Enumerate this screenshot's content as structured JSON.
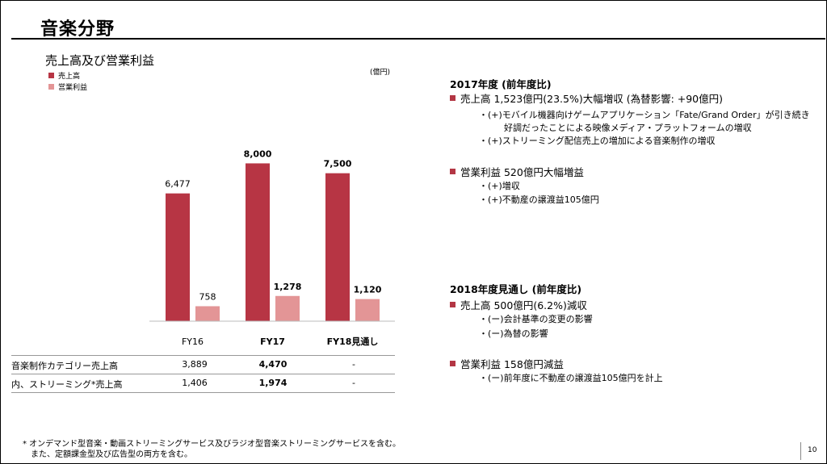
{
  "page_title": "音楽分野",
  "colors": {
    "revenue": "#b73544",
    "operating_income": "#e39596",
    "bullet": "#b33644"
  },
  "chart_data": {
    "type": "bar",
    "title": "売上高及び営業利益",
    "unit": "(億円)",
    "categories": [
      "FY16",
      "FY17",
      "FY18見通し"
    ],
    "category_bold": [
      false,
      true,
      true
    ],
    "series": [
      {
        "name": "売上高",
        "values": [
          6477,
          8000,
          7500
        ],
        "labels": [
          "6,477",
          "8,000",
          "7,500"
        ],
        "bold": [
          false,
          true,
          true
        ]
      },
      {
        "name": "営業利益",
        "values": [
          758,
          1278,
          1120
        ],
        "labels": [
          "758",
          "1,278",
          "1,120"
        ],
        "bold": [
          false,
          true,
          true
        ]
      }
    ],
    "ylim": [
      0,
      9000
    ],
    "grid": false,
    "legend": "top-left"
  },
  "table": {
    "rows": [
      {
        "label": "音楽制作カテゴリー売上高",
        "values": [
          "3,889",
          "4,470",
          "-"
        ]
      },
      {
        "label": "内、ストリーミング*売上高",
        "values": [
          "1,406",
          "1,974",
          "-"
        ]
      }
    ]
  },
  "fy17": {
    "title": "2017年度 (前年度比)",
    "sales_heading": "売上高 1,523億円(23.5%)大幅増収 (為替影響: +90億円)",
    "sales_items": [
      "・(+)モバイル機器向けゲームアプリケーション「Fate/Grand Order」が引き続き",
      "好調だったことによる映像メディア・プラットフォームの増収",
      "・(+)ストリーミング配信売上の増加による音楽制作の増収"
    ],
    "op_heading": "営業利益 520億円大幅増益",
    "op_items": [
      "・(+)増収",
      "・(+)不動産の譲渡益105億円"
    ]
  },
  "fy18": {
    "title": "2018年度見通し (前年度比)",
    "sales_heading": "売上高 500億円(6.2%)減収",
    "sales_items": [
      "・(ー)会計基準の変更の影響",
      "・(ー)為替の影響"
    ],
    "op_heading": "営業利益 158億円減益",
    "op_items": [
      "・(ー)前年度に不動産の譲渡益105億円を計上"
    ]
  },
  "footnote": {
    "line1": "* オンデマンド型音楽・動画ストリーミングサービス及びラジオ型音楽ストリーミングサービスを含む。",
    "line2": "また、定額課金型及び広告型の両方を含む。"
  },
  "page_number": "10"
}
